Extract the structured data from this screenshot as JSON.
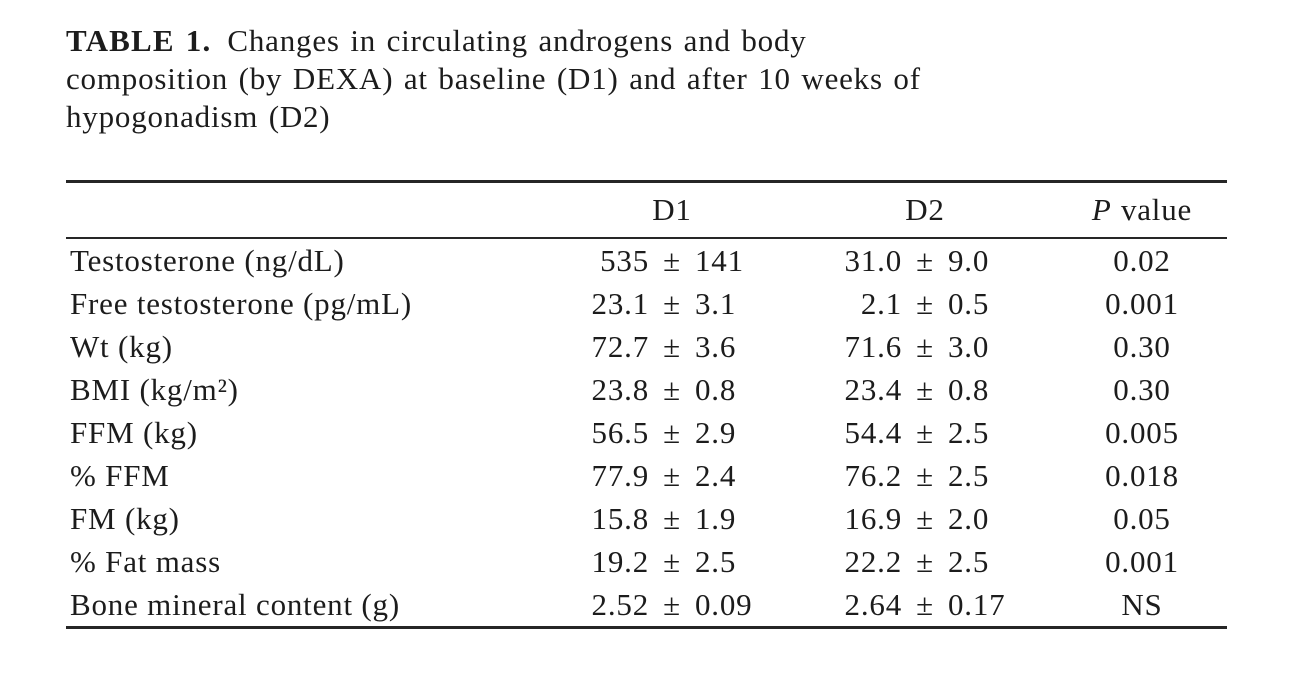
{
  "caption": {
    "label": "TABLE 1.",
    "lines": [
      "Changes in circulating androgens and body",
      "composition (by DEXA) at baseline (D1) and after 10 weeks of",
      "hypogonadism (D2)"
    ]
  },
  "table": {
    "header": {
      "metric": "",
      "d1": "D1",
      "d2": "D2",
      "p_italic": "P",
      "p_rest": "value"
    },
    "rows": [
      {
        "label": "Testosterone (ng/dL)",
        "d1": "535 ± 141",
        "d2": "31.0 ± 9.0",
        "p": "0.02"
      },
      {
        "label": "Free testosterone (pg/mL)",
        "d1": "23.1 ± 3.1",
        "d2": "2.1 ± 0.5",
        "p": "0.001"
      },
      {
        "label": "Wt (kg)",
        "d1": "72.7 ± 3.6",
        "d2": "71.6 ± 3.0",
        "p": "0.30"
      },
      {
        "label": "BMI (kg/m²)",
        "d1": "23.8 ± 0.8",
        "d2": "23.4 ± 0.8",
        "p": "0.30"
      },
      {
        "label": "FFM (kg)",
        "d1": "56.5 ± 2.9",
        "d2": "54.4 ± 2.5",
        "p": "0.005"
      },
      {
        "label": "% FFM",
        "d1": "77.9 ± 2.4",
        "d2": "76.2 ± 2.5",
        "p": "0.018"
      },
      {
        "label": "FM (kg)",
        "d1": "15.8 ± 1.9",
        "d2": "16.9 ± 2.0",
        "p": "0.05"
      },
      {
        "label": "% Fat mass",
        "d1": "19.2 ± 2.5",
        "d2": "22.2 ± 2.5",
        "p": "0.001"
      },
      {
        "label": "Bone mineral content (g)",
        "d1": "2.52 ± 0.09",
        "d2": "2.64 ± 0.17",
        "p": "NS"
      }
    ]
  },
  "colors": {
    "background": "#ffffff",
    "text": "#1c1c1c",
    "rule": "#262626"
  }
}
